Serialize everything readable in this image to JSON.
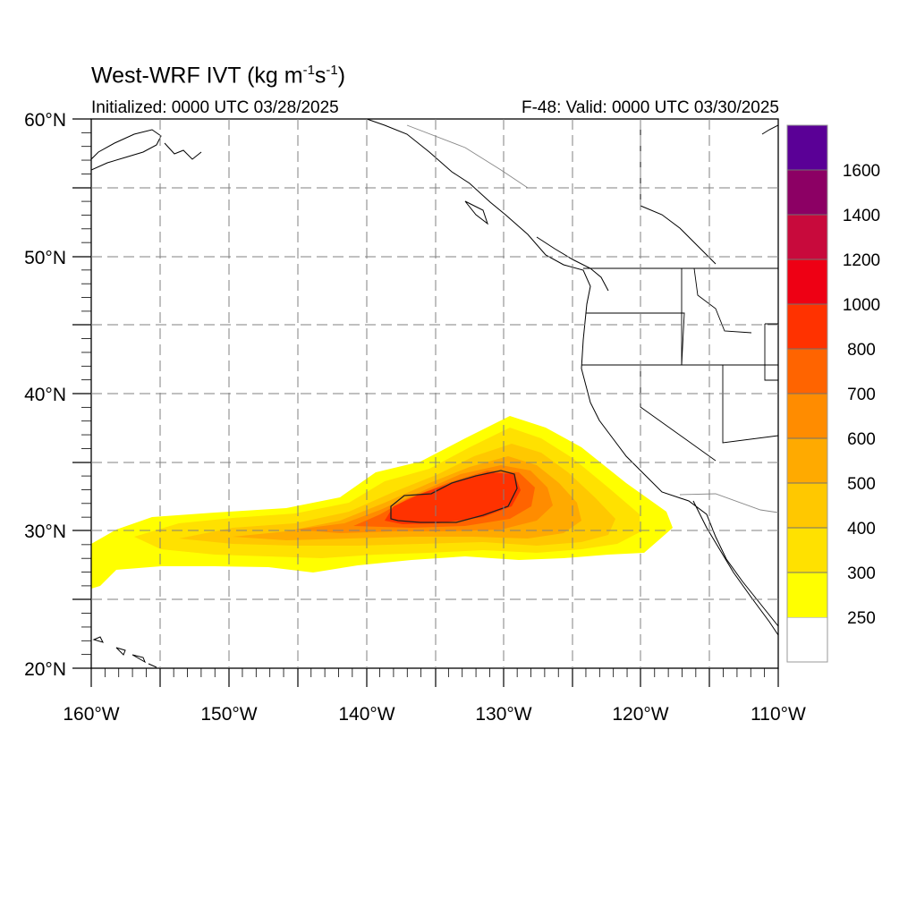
{
  "header": {
    "title_main": "West-WRF IVT (kg m",
    "title_exp1": "-1",
    "title_mid": "s",
    "title_exp2": "-1",
    "title_end": ")",
    "initialized": "Initialized: 0000 UTC 03/28/2025",
    "valid": "F-48: Valid: 0000 UTC 03/30/2025"
  },
  "map": {
    "lat_labels": [
      "60°N",
      "50°N",
      "40°N",
      "30°N",
      "20°N"
    ],
    "lon_labels": [
      "160°W",
      "150°W",
      "140°W",
      "130°W",
      "120°W",
      "110°W"
    ],
    "extent": {
      "lon": [
        -160,
        -110
      ],
      "lat": [
        20,
        60
      ]
    }
  },
  "colorbar": {
    "levels": [
      "250",
      "300",
      "400",
      "500",
      "600",
      "700",
      "800",
      "1000",
      "1200",
      "1400",
      "1600"
    ],
    "colors": [
      "#ffffff",
      "#ffff00",
      "#ffe100",
      "#ffc800",
      "#ffaa00",
      "#ff8c00",
      "#ff6400",
      "#ff3200",
      "#ee0014",
      "#c80a3c",
      "#8c0064",
      "#5a0096"
    ]
  },
  "ivt_core_contour": "1000"
}
